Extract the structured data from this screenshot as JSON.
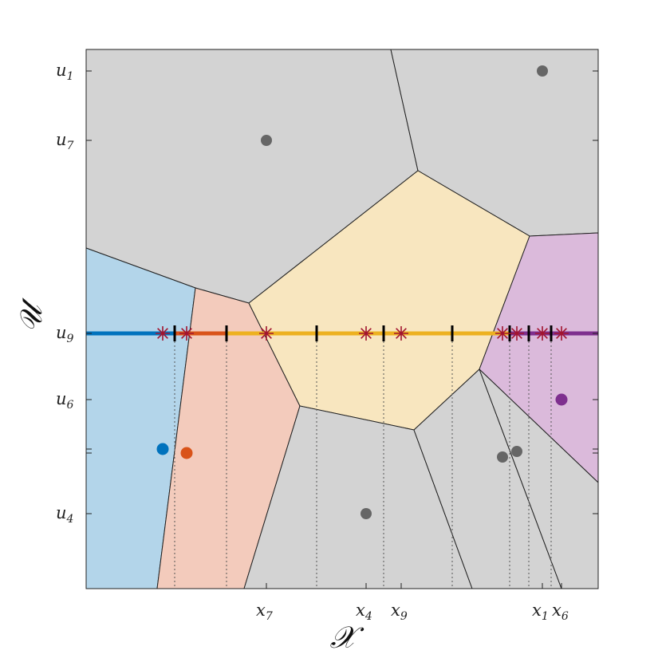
{
  "axes": {
    "x_title": "𝒳",
    "y_title": "𝒰",
    "x_ticks": [
      {
        "label": "x",
        "sub": "7"
      },
      {
        "label": "x",
        "sub": "4"
      },
      {
        "label": "x",
        "sub": "9"
      },
      {
        "label": "x",
        "sub": "1"
      },
      {
        "label": "x",
        "sub": "6"
      }
    ],
    "y_ticks": [
      {
        "label": "u",
        "sub": "1"
      },
      {
        "label": "u",
        "sub": "7"
      },
      {
        "label": "u",
        "sub": "9"
      },
      {
        "label": "u",
        "sub": "6"
      },
      {
        "label": "u",
        "sub": "4"
      }
    ]
  },
  "colors": {
    "gray_region": "#d3d3d3",
    "blue_region": "#b3d5ea",
    "orange_region": "#f3cbbc",
    "yellow_region": "#f8e6bf",
    "purple_region": "#dbbadb",
    "blue": "#0072bd",
    "orange": "#d95319",
    "yellow": "#edb120",
    "purple": "#7e2f8e",
    "gray_point": "#666666",
    "star": "#a2142f"
  }
}
